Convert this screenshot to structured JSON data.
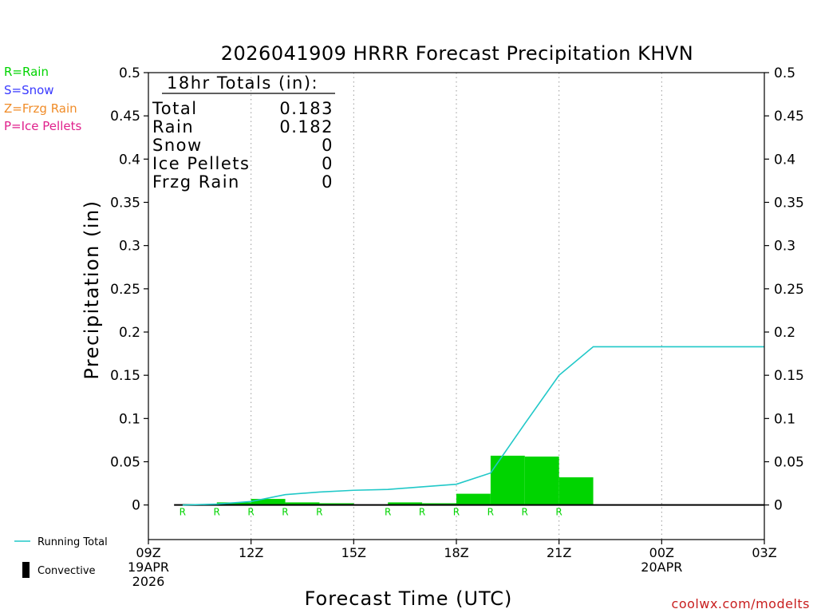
{
  "colors": {
    "rain": "#00d400",
    "snow": "#3a3aff",
    "frzg_rain": "#f08c28",
    "ice_pellets": "#e0208c",
    "running_total": "#20c8c8",
    "convective": "#000000"
  },
  "precip_legend": [
    {
      "key": "rain",
      "label": "R=Rain"
    },
    {
      "key": "snow",
      "label": "S=Snow"
    },
    {
      "key": "frzg_rain",
      "label": "Z=Frzg Rain"
    },
    {
      "key": "ice_pellets",
      "label": "P=Ice Pellets"
    }
  ],
  "series_legend": {
    "running_total": "Running Total",
    "convective": "Convective"
  },
  "totals_box": {
    "heading": "18hr Totals (in):",
    "rows": [
      {
        "label": "Total",
        "value": "0.183"
      },
      {
        "label": "Rain",
        "value": "0.182"
      },
      {
        "label": "Snow",
        "value": "0"
      },
      {
        "label": "Ice Pellets",
        "value": "0"
      },
      {
        "label": "Frzg Rain",
        "value": "0"
      }
    ]
  },
  "credit": "coolwx.com/modelts",
  "chart_data": {
    "type": "bar",
    "title": "2026041909 HRRR Forecast Precipitation KHVN",
    "xlabel": "Forecast Time (UTC)",
    "ylabel": "Precipitation (in)",
    "ylim": [
      -0.04,
      0.5
    ],
    "yticks": [
      0,
      0.05,
      0.1,
      0.15,
      0.2,
      0.25,
      0.3,
      0.35,
      0.4,
      0.45,
      0.5
    ],
    "ytick_labels": [
      "0",
      "0.05",
      "0.1",
      "0.15",
      "0.2",
      "0.25",
      "0.3",
      "0.35",
      "0.4",
      "0.45",
      "0.5"
    ],
    "xlim_hours": [
      9,
      27
    ],
    "xticks": [
      {
        "hour": 9,
        "lines": [
          "09Z",
          "19APR",
          "2026"
        ]
      },
      {
        "hour": 12,
        "lines": [
          "12Z"
        ]
      },
      {
        "hour": 15,
        "lines": [
          "15Z"
        ]
      },
      {
        "hour": 18,
        "lines": [
          "18Z"
        ]
      },
      {
        "hour": 21,
        "lines": [
          "21Z"
        ]
      },
      {
        "hour": 24,
        "lines": [
          "00Z",
          "20APR"
        ]
      },
      {
        "hour": 27,
        "lines": [
          "03Z"
        ]
      }
    ],
    "gridlines_hours": [
      12,
      15,
      18,
      21,
      24
    ],
    "hours": [
      10,
      11,
      12,
      13,
      14,
      15,
      16,
      17,
      18,
      19,
      20,
      21,
      22,
      23,
      24,
      25,
      26,
      27
    ],
    "series": [
      {
        "key": "rain",
        "values": [
          0,
          0.001,
          0.003,
          0.007,
          0.003,
          0.002,
          0,
          0.003,
          0.002,
          0.013,
          0.057,
          0.056,
          0.032,
          0,
          0,
          0,
          0,
          0
        ]
      },
      {
        "key": "running_total",
        "name": "Running Total",
        "values": [
          0,
          0.001,
          0.004,
          0.012,
          0.015,
          0.017,
          0.018,
          0.021,
          0.024,
          0.037,
          0.094,
          0.15,
          0.183,
          0.183,
          0.183,
          0.183,
          0.183,
          0.183
        ]
      },
      {
        "key": "convective",
        "name": "Convective",
        "values": [
          0,
          0,
          0,
          0,
          0,
          0,
          0,
          0,
          0,
          0,
          0,
          0,
          0,
          0,
          0,
          0,
          0,
          0
        ]
      }
    ],
    "type_markers": [
      {
        "hour": 11,
        "label": "R"
      },
      {
        "hour": 12,
        "label": "R"
      },
      {
        "hour": 13,
        "label": "R"
      },
      {
        "hour": 14,
        "label": "R"
      },
      {
        "hour": 15,
        "label": "R"
      },
      {
        "hour": 17,
        "label": "R"
      },
      {
        "hour": 18,
        "label": "R"
      },
      {
        "hour": 19,
        "label": "R"
      },
      {
        "hour": 20,
        "label": "R"
      },
      {
        "hour": 21,
        "label": "R"
      },
      {
        "hour": 22,
        "label": "R"
      }
    ],
    "grid": "vertical dotted"
  }
}
